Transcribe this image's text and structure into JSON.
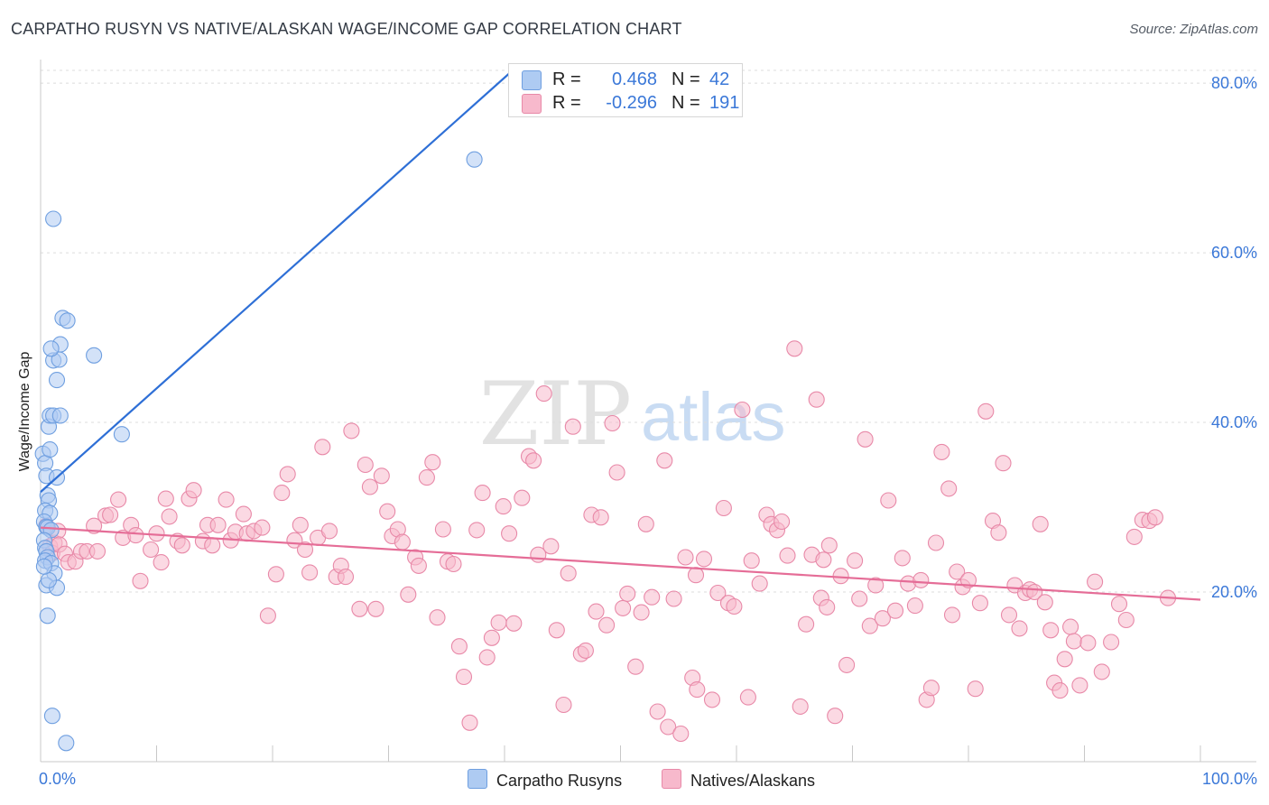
{
  "header": {
    "title": "CARPATHO RUSYN VS NATIVE/ALASKAN WAGE/INCOME GAP CORRELATION CHART",
    "source": "Source: ZipAtlas.com"
  },
  "watermark": {
    "zip": "ZIP",
    "atlas": "atlas"
  },
  "legend": {
    "rows": [
      {
        "r_label": "R =",
        "r_value": "0.468",
        "n_label": "N =",
        "n_value": "42",
        "color": "#aecbf2",
        "stroke": "#6f9fe0"
      },
      {
        "r_label": "R =",
        "r_value": "-0.296",
        "n_label": "N =",
        "n_value": "191",
        "color": "#f7b9cc",
        "stroke": "#e889a8"
      }
    ]
  },
  "bottom_legend": [
    {
      "label": "Carpatho Rusyns",
      "color": "#aecbf2",
      "stroke": "#6f9fe0"
    },
    {
      "label": "Natives/Alaskans",
      "color": "#f7b9cc",
      "stroke": "#e889a8"
    }
  ],
  "chart_data": {
    "type": "scatter",
    "title": "CARPATHO RUSYN VS NATIVE/ALASKAN WAGE/INCOME GAP CORRELATION CHART",
    "xlabel": "",
    "ylabel": "Wage/Income Gap",
    "xlim": [
      0,
      100
    ],
    "ylim": [
      0,
      84
    ],
    "x_tick_labels": [
      {
        "value": 0,
        "label": "0.0%"
      },
      {
        "value": 100,
        "label": "100.0%"
      }
    ],
    "y_tick_labels": [
      {
        "value": 20,
        "label": "20.0%"
      },
      {
        "value": 40,
        "label": "40.0%"
      },
      {
        "value": 60,
        "label": "60.0%"
      },
      {
        "value": 80,
        "label": "80.0%"
      }
    ],
    "x_minor_ticks": [
      10,
      20,
      30,
      40,
      50,
      60,
      70,
      80,
      90,
      100
    ],
    "grid": true,
    "series": [
      {
        "name": "Carpatho Rusyns",
        "color": "#aecbf2",
        "stroke": "#6f9fe0",
        "trend": {
          "x0": 0,
          "y0": 31.8,
          "x1": 40.7,
          "y1": 81.5,
          "color": "#2e6fd6"
        },
        "points": [
          [
            0.2,
            36.3
          ],
          [
            0.4,
            35.2
          ],
          [
            0.5,
            33.7
          ],
          [
            0.6,
            31.4
          ],
          [
            0.7,
            30.8
          ],
          [
            0.4,
            29.6
          ],
          [
            0.8,
            29.3
          ],
          [
            0.3,
            28.3
          ],
          [
            0.5,
            27.7
          ],
          [
            0.6,
            27.6
          ],
          [
            0.9,
            27.3
          ],
          [
            0.3,
            26.1
          ],
          [
            0.4,
            25.2
          ],
          [
            0.5,
            24.8
          ],
          [
            0.6,
            24.1
          ],
          [
            0.4,
            23.7
          ],
          [
            0.9,
            23.4
          ],
          [
            1.2,
            22.2
          ],
          [
            0.5,
            20.8
          ],
          [
            1.4,
            20.5
          ],
          [
            0.6,
            17.2
          ],
          [
            0.7,
            21.4
          ],
          [
            0.3,
            23.0
          ],
          [
            0.7,
            39.5
          ],
          [
            0.8,
            40.8
          ],
          [
            1.1,
            40.8
          ],
          [
            1.7,
            40.8
          ],
          [
            0.8,
            36.8
          ],
          [
            1.4,
            33.5
          ],
          [
            1.1,
            47.3
          ],
          [
            1.4,
            45.0
          ],
          [
            1.6,
            47.4
          ],
          [
            1.7,
            49.2
          ],
          [
            0.9,
            48.7
          ],
          [
            1.9,
            52.3
          ],
          [
            2.3,
            52.0
          ],
          [
            4.6,
            47.9
          ],
          [
            7.0,
            38.6
          ],
          [
            1.1,
            64.0
          ],
          [
            37.4,
            71.0
          ],
          [
            1.0,
            5.4
          ],
          [
            2.2,
            2.2
          ]
        ]
      },
      {
        "name": "Natives/Alaskans",
        "color": "#f7b9cc",
        "stroke": "#e889a8",
        "trend": {
          "x0": 0,
          "y0": 27.6,
          "x1": 100,
          "y1": 19.1,
          "color": "#e56d97"
        },
        "points": [
          [
            0.5,
            27.8
          ],
          [
            0.8,
            25.4
          ],
          [
            1.0,
            24.6
          ],
          [
            1.2,
            25.8
          ],
          [
            1.5,
            27.2
          ],
          [
            1.6,
            25.6
          ],
          [
            2.1,
            24.5
          ],
          [
            2.4,
            23.5
          ],
          [
            3.0,
            23.6
          ],
          [
            3.5,
            24.8
          ],
          [
            4.0,
            24.8
          ],
          [
            4.6,
            27.8
          ],
          [
            4.9,
            24.8
          ],
          [
            5.6,
            29.0
          ],
          [
            6.0,
            29.1
          ],
          [
            6.7,
            30.9
          ],
          [
            7.1,
            26.4
          ],
          [
            7.8,
            27.9
          ],
          [
            8.2,
            26.7
          ],
          [
            8.6,
            21.3
          ],
          [
            9.5,
            25.0
          ],
          [
            10.0,
            26.9
          ],
          [
            10.4,
            23.5
          ],
          [
            10.8,
            31.0
          ],
          [
            11.1,
            28.9
          ],
          [
            11.8,
            26.0
          ],
          [
            12.2,
            25.5
          ],
          [
            12.8,
            31.0
          ],
          [
            13.2,
            32.0
          ],
          [
            14.0,
            26.0
          ],
          [
            14.4,
            27.9
          ],
          [
            14.8,
            25.5
          ],
          [
            15.3,
            27.9
          ],
          [
            16.0,
            30.9
          ],
          [
            16.4,
            26.1
          ],
          [
            16.8,
            27.1
          ],
          [
            17.5,
            29.2
          ],
          [
            17.8,
            26.9
          ],
          [
            18.4,
            27.2
          ],
          [
            19.1,
            27.6
          ],
          [
            19.6,
            17.2
          ],
          [
            20.3,
            22.1
          ],
          [
            20.8,
            31.7
          ],
          [
            21.3,
            33.9
          ],
          [
            21.9,
            26.1
          ],
          [
            22.4,
            27.9
          ],
          [
            22.8,
            25.0
          ],
          [
            23.2,
            22.3
          ],
          [
            23.9,
            26.4
          ],
          [
            24.3,
            37.1
          ],
          [
            24.9,
            27.2
          ],
          [
            25.5,
            21.8
          ],
          [
            25.9,
            23.1
          ],
          [
            26.3,
            21.8
          ],
          [
            26.8,
            39.0
          ],
          [
            27.5,
            18.0
          ],
          [
            28.0,
            35.0
          ],
          [
            28.4,
            32.4
          ],
          [
            28.9,
            18.0
          ],
          [
            29.4,
            33.7
          ],
          [
            29.9,
            29.5
          ],
          [
            30.3,
            26.6
          ],
          [
            30.8,
            27.4
          ],
          [
            31.2,
            25.9
          ],
          [
            31.7,
            19.7
          ],
          [
            32.3,
            24.1
          ],
          [
            32.6,
            23.1
          ],
          [
            33.3,
            33.5
          ],
          [
            33.8,
            35.3
          ],
          [
            34.2,
            17.0
          ],
          [
            34.7,
            27.4
          ],
          [
            35.1,
            23.6
          ],
          [
            35.6,
            23.3
          ],
          [
            36.1,
            13.6
          ],
          [
            36.5,
            10.0
          ],
          [
            37.0,
            4.6
          ],
          [
            37.6,
            27.3
          ],
          [
            38.1,
            31.7
          ],
          [
            38.5,
            12.3
          ],
          [
            38.9,
            14.6
          ],
          [
            39.5,
            16.4
          ],
          [
            39.9,
            30.1
          ],
          [
            40.4,
            26.9
          ],
          [
            40.8,
            16.3
          ],
          [
            41.5,
            31.1
          ],
          [
            42.1,
            36.0
          ],
          [
            42.5,
            35.5
          ],
          [
            42.9,
            24.4
          ],
          [
            43.4,
            43.4
          ],
          [
            44.0,
            25.4
          ],
          [
            44.5,
            15.5
          ],
          [
            45.1,
            6.7
          ],
          [
            45.5,
            22.2
          ],
          [
            45.9,
            39.5
          ],
          [
            46.6,
            12.7
          ],
          [
            47.0,
            13.1
          ],
          [
            47.5,
            29.1
          ],
          [
            47.9,
            17.7
          ],
          [
            48.3,
            28.8
          ],
          [
            48.8,
            16.1
          ],
          [
            49.3,
            39.9
          ],
          [
            49.7,
            34.1
          ],
          [
            50.2,
            18.1
          ],
          [
            50.6,
            19.8
          ],
          [
            51.3,
            11.2
          ],
          [
            51.8,
            17.6
          ],
          [
            52.2,
            28.0
          ],
          [
            52.7,
            19.4
          ],
          [
            53.2,
            5.9
          ],
          [
            53.8,
            35.5
          ],
          [
            54.1,
            4.1
          ],
          [
            54.6,
            19.2
          ],
          [
            55.2,
            3.3
          ],
          [
            55.6,
            24.1
          ],
          [
            56.2,
            9.9
          ],
          [
            56.6,
            8.5
          ],
          [
            57.2,
            23.9
          ],
          [
            57.9,
            7.3
          ],
          [
            58.4,
            19.9
          ],
          [
            58.9,
            29.9
          ],
          [
            59.3,
            18.7
          ],
          [
            59.8,
            18.3
          ],
          [
            60.5,
            41.5
          ],
          [
            61.0,
            7.6
          ],
          [
            61.3,
            23.7
          ],
          [
            62.0,
            21.0
          ],
          [
            62.6,
            29.1
          ],
          [
            63.0,
            28.0
          ],
          [
            63.5,
            27.3
          ],
          [
            63.9,
            28.3
          ],
          [
            64.4,
            24.3
          ],
          [
            65.0,
            48.7
          ],
          [
            65.5,
            6.5
          ],
          [
            66.0,
            16.2
          ],
          [
            66.5,
            24.4
          ],
          [
            66.9,
            42.7
          ],
          [
            67.3,
            19.3
          ],
          [
            67.8,
            18.2
          ],
          [
            68.5,
            5.4
          ],
          [
            69.0,
            21.9
          ],
          [
            69.5,
            11.4
          ],
          [
            70.2,
            23.7
          ],
          [
            70.6,
            19.2
          ],
          [
            71.1,
            38.0
          ],
          [
            71.5,
            16.0
          ],
          [
            72.0,
            20.8
          ],
          [
            72.6,
            16.9
          ],
          [
            73.1,
            30.8
          ],
          [
            73.7,
            17.8
          ],
          [
            74.3,
            24.0
          ],
          [
            74.8,
            21.0
          ],
          [
            75.4,
            18.4
          ],
          [
            75.9,
            21.4
          ],
          [
            76.4,
            7.3
          ],
          [
            76.8,
            8.7
          ],
          [
            77.2,
            25.8
          ],
          [
            77.7,
            36.5
          ],
          [
            78.3,
            32.2
          ],
          [
            78.6,
            17.3
          ],
          [
            79.0,
            22.4
          ],
          [
            79.5,
            20.6
          ],
          [
            80.0,
            21.4
          ],
          [
            80.6,
            8.6
          ],
          [
            81.0,
            18.7
          ],
          [
            81.5,
            41.3
          ],
          [
            82.1,
            28.4
          ],
          [
            82.6,
            27.0
          ],
          [
            83.0,
            35.2
          ],
          [
            83.5,
            17.3
          ],
          [
            84.0,
            20.8
          ],
          [
            84.4,
            15.7
          ],
          [
            84.9,
            19.9
          ],
          [
            85.3,
            20.3
          ],
          [
            85.7,
            20.0
          ],
          [
            86.2,
            28.0
          ],
          [
            86.6,
            18.8
          ],
          [
            87.1,
            15.5
          ],
          [
            87.4,
            9.3
          ],
          [
            87.9,
            8.4
          ],
          [
            88.3,
            12.1
          ],
          [
            88.8,
            15.9
          ],
          [
            89.1,
            14.2
          ],
          [
            89.6,
            9.0
          ],
          [
            90.3,
            14.0
          ],
          [
            90.9,
            21.2
          ],
          [
            91.5,
            10.6
          ],
          [
            92.3,
            14.1
          ],
          [
            93.0,
            18.6
          ],
          [
            93.6,
            16.7
          ],
          [
            94.3,
            26.5
          ],
          [
            95.0,
            28.5
          ],
          [
            95.6,
            28.4
          ],
          [
            96.1,
            28.8
          ],
          [
            97.2,
            19.3
          ],
          [
            68.0,
            25.5
          ],
          [
            67.5,
            23.8
          ],
          [
            56.5,
            22.0
          ]
        ]
      }
    ]
  }
}
